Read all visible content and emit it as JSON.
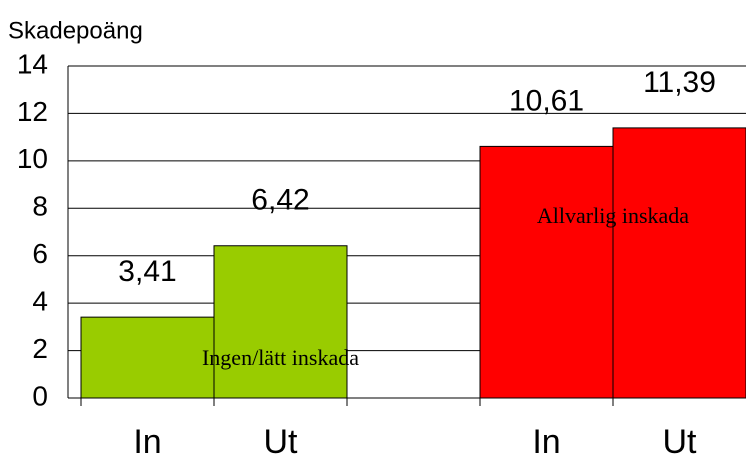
{
  "chart_data": {
    "type": "bar",
    "y_label": "Skadepoäng",
    "categories": [
      "In",
      "Ut",
      null,
      "In",
      "Ut"
    ],
    "values": [
      3.41,
      6.42,
      null,
      10.61,
      11.39
    ],
    "value_labels": [
      "3,41",
      "6,42",
      null,
      "10,61",
      "11,39"
    ],
    "colors": [
      "#99cc00",
      "#99cc00",
      null,
      "#ff0000",
      "#ff0000"
    ],
    "annotations": [
      "Ingen/lätt inskada",
      "Allvarlig inskada"
    ],
    "ylim": [
      0,
      14
    ],
    "yticks": [
      0,
      2,
      4,
      6,
      8,
      10,
      12,
      14
    ],
    "grid": true
  }
}
